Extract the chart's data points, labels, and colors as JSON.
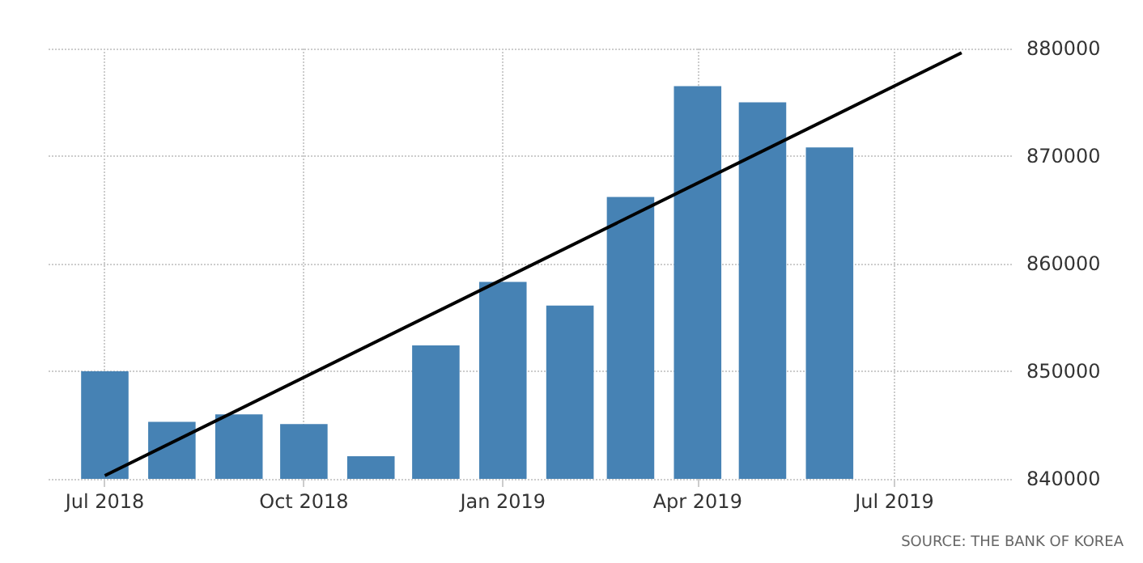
{
  "chart_data": {
    "type": "bar",
    "x": [
      "2018-07",
      "2018-08",
      "2018-09",
      "2018-10",
      "2018-11",
      "2018-12",
      "2019-01",
      "2019-02",
      "2019-03",
      "2019-04",
      "2019-05",
      "2019-06"
    ],
    "series": [
      {
        "color": "#4682b4",
        "values": [
          850000,
          845300,
          846000,
          845100,
          842100,
          852400,
          858300,
          856100,
          866200,
          876500,
          875000,
          870800
        ]
      },
      {
        "type": "line",
        "color": "#000000",
        "x": [
          "2018-07",
          "2019-08"
        ],
        "values": [
          840300,
          879600
        ],
        "marker": "none",
        "line_style": "solid"
      }
    ],
    "xlim": [
      "2018-06-05",
      "2019-08-25"
    ],
    "xticks": [
      {
        "value": "2018-07",
        "label": "Jul 2018"
      },
      {
        "value": "2018-10",
        "label": "Oct 2018"
      },
      {
        "value": "2019-01",
        "label": "Jan 2019"
      },
      {
        "value": "2019-04",
        "label": "Apr 2019"
      },
      {
        "value": "2019-07",
        "label": "Jul 2019"
      }
    ],
    "ylim": [
      840000,
      880000
    ],
    "yticks": [
      840000,
      850000,
      860000,
      870000,
      880000
    ],
    "grid": true,
    "annotations": [
      "SOURCE: THE BANK OF KOREA"
    ]
  }
}
